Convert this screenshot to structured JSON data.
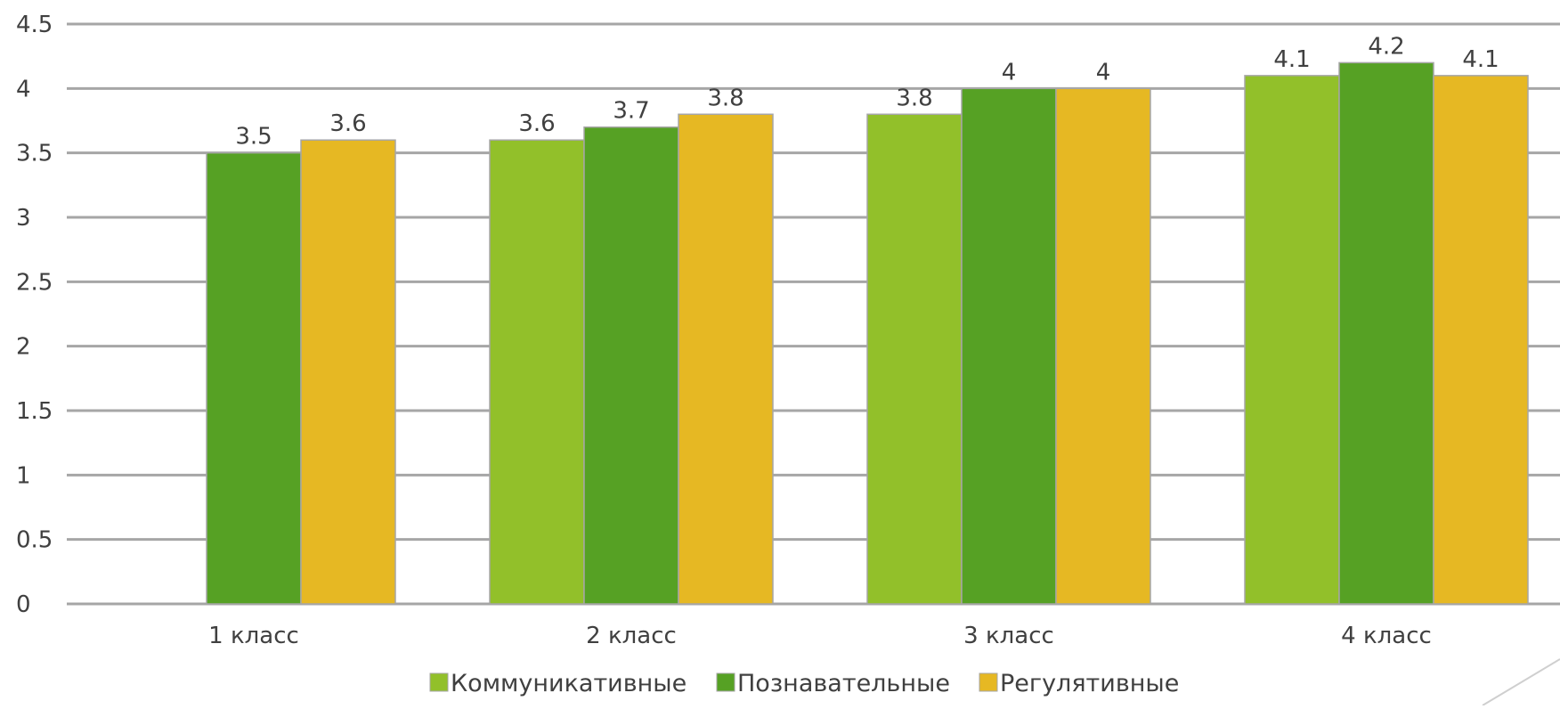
{
  "chart_data": {
    "type": "bar",
    "categories": [
      "1 класс",
      "2 класс",
      "3 класс",
      "4 класс"
    ],
    "series": [
      {
        "name": "Коммуникативные",
        "values": [
          null,
          3.6,
          3.8,
          4.1
        ],
        "color": "#92c02a"
      },
      {
        "name": "Познавательные",
        "values": [
          3.5,
          3.7,
          4,
          4.2
        ],
        "color": "#56a124"
      },
      {
        "name": "Регулятивные",
        "values": [
          3.6,
          3.8,
          4,
          4.1
        ],
        "color": "#e6b823"
      }
    ],
    "y_ticks": [
      "0",
      "0.5",
      "1",
      "1.5",
      "2",
      "2.5",
      "3",
      "3.5",
      "4",
      "4.5"
    ],
    "ylim": [
      0,
      4.5
    ],
    "grid": true,
    "legend_position": "bottom",
    "data_labels": true,
    "gridline_color": "#a6a6a6",
    "bar_edge_color": "#a6a6a6",
    "corner_line_color": "#cfcfcf"
  }
}
